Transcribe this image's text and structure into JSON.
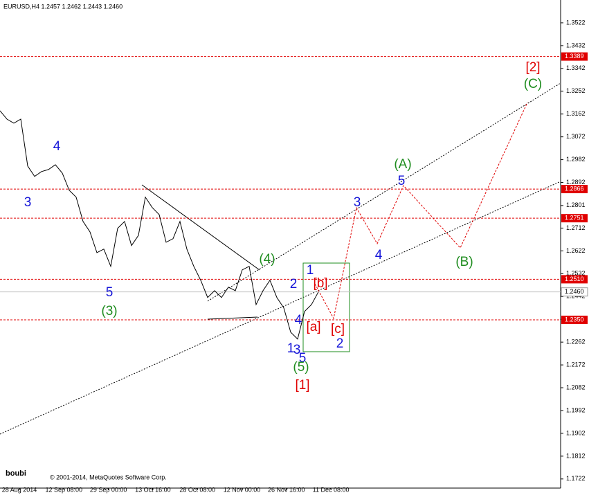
{
  "chart_data": {
    "type": "line",
    "title": "EURUSD,H4  1.2457 1.2462 1.2443 1.2460",
    "x_labels": [
      "28 Aug 2014",
      "12 Sep 08:00",
      "29 Sep 00:00",
      "13 Oct 16:00",
      "28 Oct 08:00",
      "12 Nov 00:00",
      "26 Nov 16:00",
      "11 Dec 08:00"
    ],
    "series": [
      {
        "color": "#000000",
        "values": [
          1.3175,
          1.3142,
          1.3126,
          1.3142,
          1.2957,
          1.2916,
          1.2935,
          1.2943,
          1.2962,
          1.2929,
          1.2861,
          1.2834,
          1.2738,
          1.2697,
          1.2615,
          1.2629,
          1.2561,
          1.2711,
          1.2738,
          1.2643,
          1.2683,
          1.2834,
          1.2793,
          1.2765,
          1.2656,
          1.267,
          1.2738,
          1.2629,
          1.2561,
          1.2506,
          1.2438,
          1.2465,
          1.2438,
          1.2479,
          1.2465,
          1.2547,
          1.2561,
          1.241,
          1.2465,
          1.2506,
          1.2438,
          1.2397,
          1.2301,
          1.2274,
          1.2383,
          1.241,
          1.246
        ]
      }
    ],
    "ylim": [
      1.1686,
      1.3612
    ],
    "yticks": [
      1.3522,
      1.3432,
      1.3342,
      1.3252,
      1.3162,
      1.3072,
      1.2982,
      1.2892,
      1.2801,
      1.2712,
      1.2622,
      1.2532,
      1.2442,
      1.2352,
      1.2262,
      1.2172,
      1.2082,
      1.1992,
      1.1902,
      1.1812,
      1.1722
    ],
    "levels": [
      {
        "value": 1.3389,
        "label": "1.3389"
      },
      {
        "value": 1.2866,
        "label": "1.2866"
      },
      {
        "value": 1.2751,
        "label": "1.2751"
      },
      {
        "value": 1.251,
        "label": "1.2510"
      },
      {
        "value": 1.235,
        "label": "1.2350"
      }
    ],
    "level_color": "#e00000",
    "current_price": {
      "value": 1.246,
      "label": "1.2460"
    },
    "annotations": [
      {
        "text": "4",
        "color": "#1414d8"
      },
      {
        "text": "3",
        "color": "#1414d8"
      },
      {
        "text": "5",
        "color": "#1414d8"
      },
      {
        "text": "(3)",
        "color": "#1e8c1e"
      },
      {
        "text": "(4)",
        "color": "#1e8c1e"
      },
      {
        "text": "2",
        "color": "#1414d8"
      },
      {
        "text": "1",
        "color": "#1414d8"
      },
      {
        "text": "[b]",
        "color": "#e00000"
      },
      {
        "text": "4",
        "color": "#1414d8"
      },
      {
        "text": "[a]",
        "color": "#e00000"
      },
      {
        "text": "[c]",
        "color": "#e00000"
      },
      {
        "text": "1",
        "color": "#1414d8"
      },
      {
        "text": "3",
        "color": "#1414d8"
      },
      {
        "text": "5",
        "color": "#1414d8"
      },
      {
        "text": "(5)",
        "color": "#1e8c1e"
      },
      {
        "text": "[1]",
        "color": "#e00000"
      },
      {
        "text": "2",
        "color": "#1414d8"
      },
      {
        "text": "3",
        "color": "#1414d8"
      },
      {
        "text": "4",
        "color": "#1414d8"
      },
      {
        "text": "5",
        "color": "#1414d8"
      },
      {
        "text": "(A)",
        "color": "#1e8c1e"
      },
      {
        "text": "(B)",
        "color": "#1e8c1e"
      },
      {
        "text": "[2]",
        "color": "#e00000"
      },
      {
        "text": "(C)",
        "color": "#1e8c1e"
      }
    ],
    "watermark": "boubi",
    "copyright": "© 2001-2014, MetaQuotes Software Corp."
  }
}
